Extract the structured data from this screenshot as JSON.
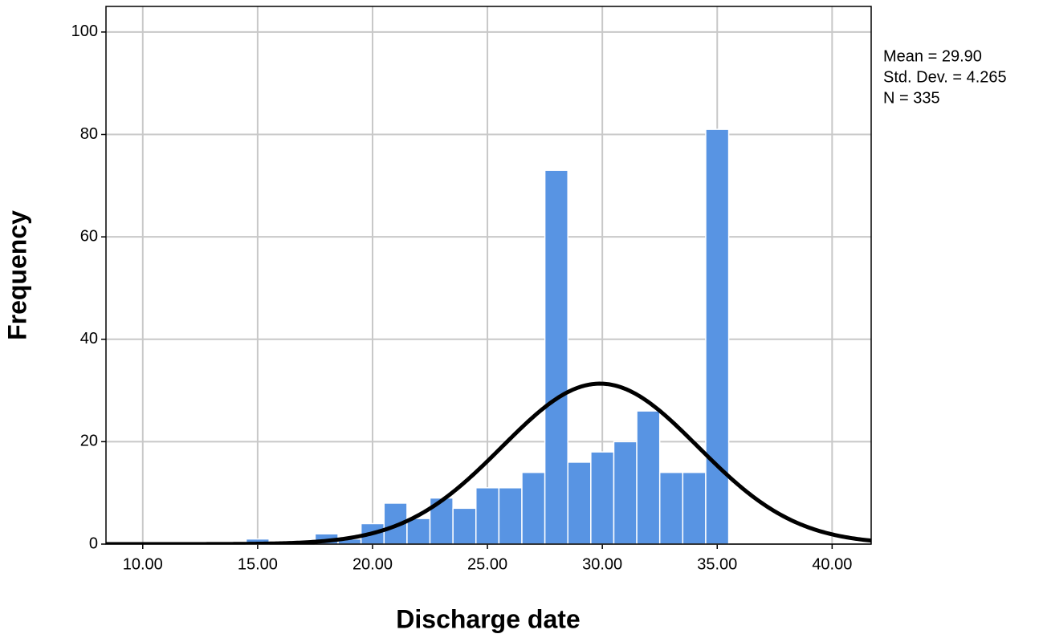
{
  "chart_data": {
    "type": "histogram",
    "x_label": "Discharge date",
    "y_label": "Frequency",
    "bins": [
      14.5,
      15.5,
      16.5,
      17.5,
      18.5,
      19.5,
      20.5,
      21.5,
      22.5,
      23.5,
      24.5,
      25.5,
      26.5,
      27.5,
      28.5,
      29.5,
      30.5,
      31.5,
      32.5,
      33.5,
      34.5,
      35.5
    ],
    "values": [
      1,
      0,
      0,
      2,
      1,
      4,
      8,
      5,
      9,
      7,
      11,
      11,
      14,
      73,
      16,
      18,
      20,
      26,
      14,
      14,
      81
    ],
    "color": "#5894e3",
    "normal_curve": {
      "mean": 29.9,
      "sd": 4.265,
      "n": 335,
      "color": "#000000"
    },
    "annotations": [
      "Mean = 29.90",
      "Std. Dev. = 4.265",
      "N = 335"
    ],
    "xlim": [
      8.4,
      41.7
    ],
    "xticks": [
      {
        "value": 10,
        "label": "10.00"
      },
      {
        "value": 15,
        "label": "15.00"
      },
      {
        "value": 20,
        "label": "20.00"
      },
      {
        "value": 25,
        "label": "25.00"
      },
      {
        "value": 30,
        "label": "30.00"
      },
      {
        "value": 35,
        "label": "35.00"
      },
      {
        "value": 40,
        "label": "40.00"
      }
    ],
    "ylim": [
      0,
      105
    ],
    "yticks": [
      0,
      20,
      40,
      60,
      80,
      100
    ],
    "grid": true
  }
}
